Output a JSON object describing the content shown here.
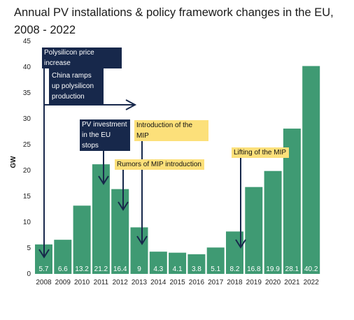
{
  "title": "Annual PV installations & policy framework changes in the EU, 2008 - 2022",
  "colors": {
    "bar": "#3f9a73",
    "arrow": "#17284b",
    "dark_box": "#17284b",
    "yellow_box": "#fce07a",
    "bar_label": "#ffffff"
  },
  "chart_data": {
    "type": "bar",
    "title": "Annual PV installations & policy framework changes in the EU, 2008 - 2022",
    "xlabel": "",
    "ylabel": "GW",
    "ylim": [
      0,
      45
    ],
    "yticks": [
      0,
      5,
      10,
      15,
      20,
      25,
      30,
      35,
      40,
      45
    ],
    "grid": false,
    "categories": [
      "2008",
      "2009",
      "2010",
      "2011",
      "2012",
      "2013",
      "2014",
      "2015",
      "2016",
      "2017",
      "2018",
      "2019",
      "2020",
      "2021",
      "2022"
    ],
    "values": [
      5.7,
      6.6,
      13.2,
      21.2,
      16.4,
      9,
      4.3,
      4.1,
      3.8,
      5.1,
      8.2,
      16.8,
      19.9,
      28.1,
      40.2
    ],
    "value_labels": [
      "5.7",
      "6.6",
      "13.2",
      "21.2",
      "16.4",
      "9",
      "4.3",
      "4.1",
      "3.8",
      "5.1",
      "8.2",
      "16.8",
      "19.9",
      "28.1",
      "40.2"
    ],
    "annotations": [
      {
        "text": "Polysilicon price increase",
        "style": "dark",
        "points_to": "2008"
      },
      {
        "text": "China ramps up polysilicon production",
        "style": "dark",
        "points_to": "2013"
      },
      {
        "text": "PV investment in the EU stops",
        "style": "dark",
        "points_to": "2011"
      },
      {
        "text": "Introduction of the MIP",
        "style": "yellow",
        "points_to": "2013"
      },
      {
        "text": "Rumors of MIP introduction",
        "style": "yellow",
        "points_to": "2012"
      },
      {
        "text": "Lifting of the MIP",
        "style": "yellow",
        "points_to": "2018"
      }
    ]
  }
}
